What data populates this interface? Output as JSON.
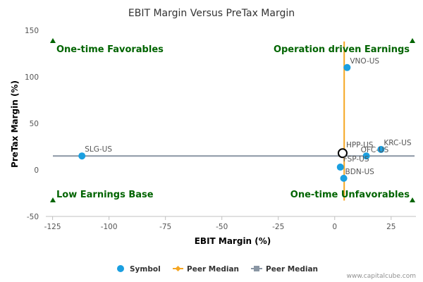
{
  "chart_data": {
    "type": "scatter",
    "title": "EBIT Margin Versus PreTax Margin",
    "xlabel": "EBIT Margin (%)",
    "ylabel": "PreTax Margin (%)",
    "xlim": [
      -128,
      36
    ],
    "ylim": [
      -50,
      150
    ],
    "xticks": [
      -125,
      -100,
      -75,
      -50,
      -25,
      0,
      25
    ],
    "yticks": [
      -50,
      0,
      50,
      100,
      150
    ],
    "points": [
      {
        "symbol": "VNO-US",
        "x": 5.5,
        "y": 110
      },
      {
        "symbol": "SLG-US",
        "x": -112,
        "y": 15
      },
      {
        "symbol": "HPP-US",
        "x": 3.5,
        "y": 18
      },
      {
        "symbol": "KRC-US",
        "x": 20.5,
        "y": 22
      },
      {
        "symbol": "OFC-US",
        "x": 14,
        "y": 15
      },
      {
        "symbol": "FSP-US",
        "x": 2.5,
        "y": 3
      },
      {
        "symbol": "BDN-US",
        "x": 4,
        "y": -9
      }
    ],
    "highlight_symbol": "HPP-US",
    "peer_median": {
      "x": 4.2,
      "y": 15
    },
    "quadrant_labels": {
      "top_left": "One-time Favorables",
      "top_right": "Operation driven Earnings",
      "bottom_left": "Low Earnings Base",
      "bottom_right": "One-time Unfavorables"
    },
    "legend": [
      {
        "label": "Symbol",
        "color": "#1a9fe0",
        "marker": "circle"
      },
      {
        "label": "Peer Median",
        "color": "#f5a623",
        "marker": "diamond-line"
      },
      {
        "label": "Peer Median",
        "color": "#8a96a4",
        "marker": "square-line"
      }
    ],
    "legend_position": "bottom",
    "grid": false,
    "colors": {
      "point": "#1a9fe0",
      "vertical_median": "#f5a623",
      "horizontal_median": "#8a96a4",
      "quadrant": "#006400"
    }
  },
  "credit": "www.capitalcube.com"
}
